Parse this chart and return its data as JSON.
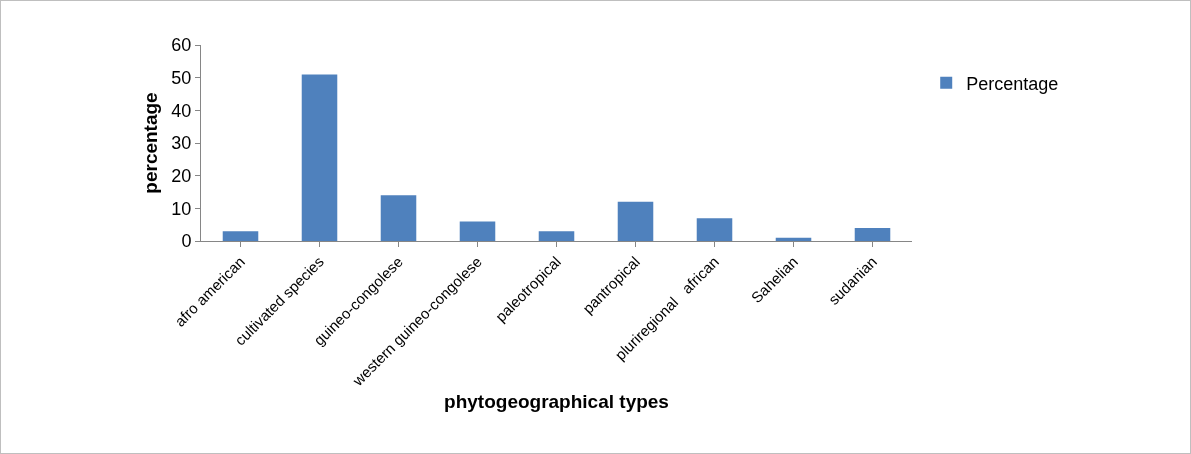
{
  "chart_data": {
    "type": "bar",
    "xlabel": "phytogeographical types",
    "ylabel": "percentage",
    "categories": [
      "afro american",
      "cultivated species",
      "guineo-congolese",
      "western guineo-congolese",
      "paleotropical",
      "pantropical",
      "pluriregional   african",
      "Sahelian",
      "sudanian"
    ],
    "series": [
      {
        "name": "Percentage",
        "color": "#4f81bd",
        "values": [
          3,
          51,
          14,
          6,
          3,
          12,
          7,
          1,
          4
        ]
      }
    ],
    "ylim": [
      0,
      60
    ],
    "yticks": [
      0,
      10,
      20,
      30,
      40,
      50,
      60
    ],
    "grid": false,
    "legend": "right"
  }
}
